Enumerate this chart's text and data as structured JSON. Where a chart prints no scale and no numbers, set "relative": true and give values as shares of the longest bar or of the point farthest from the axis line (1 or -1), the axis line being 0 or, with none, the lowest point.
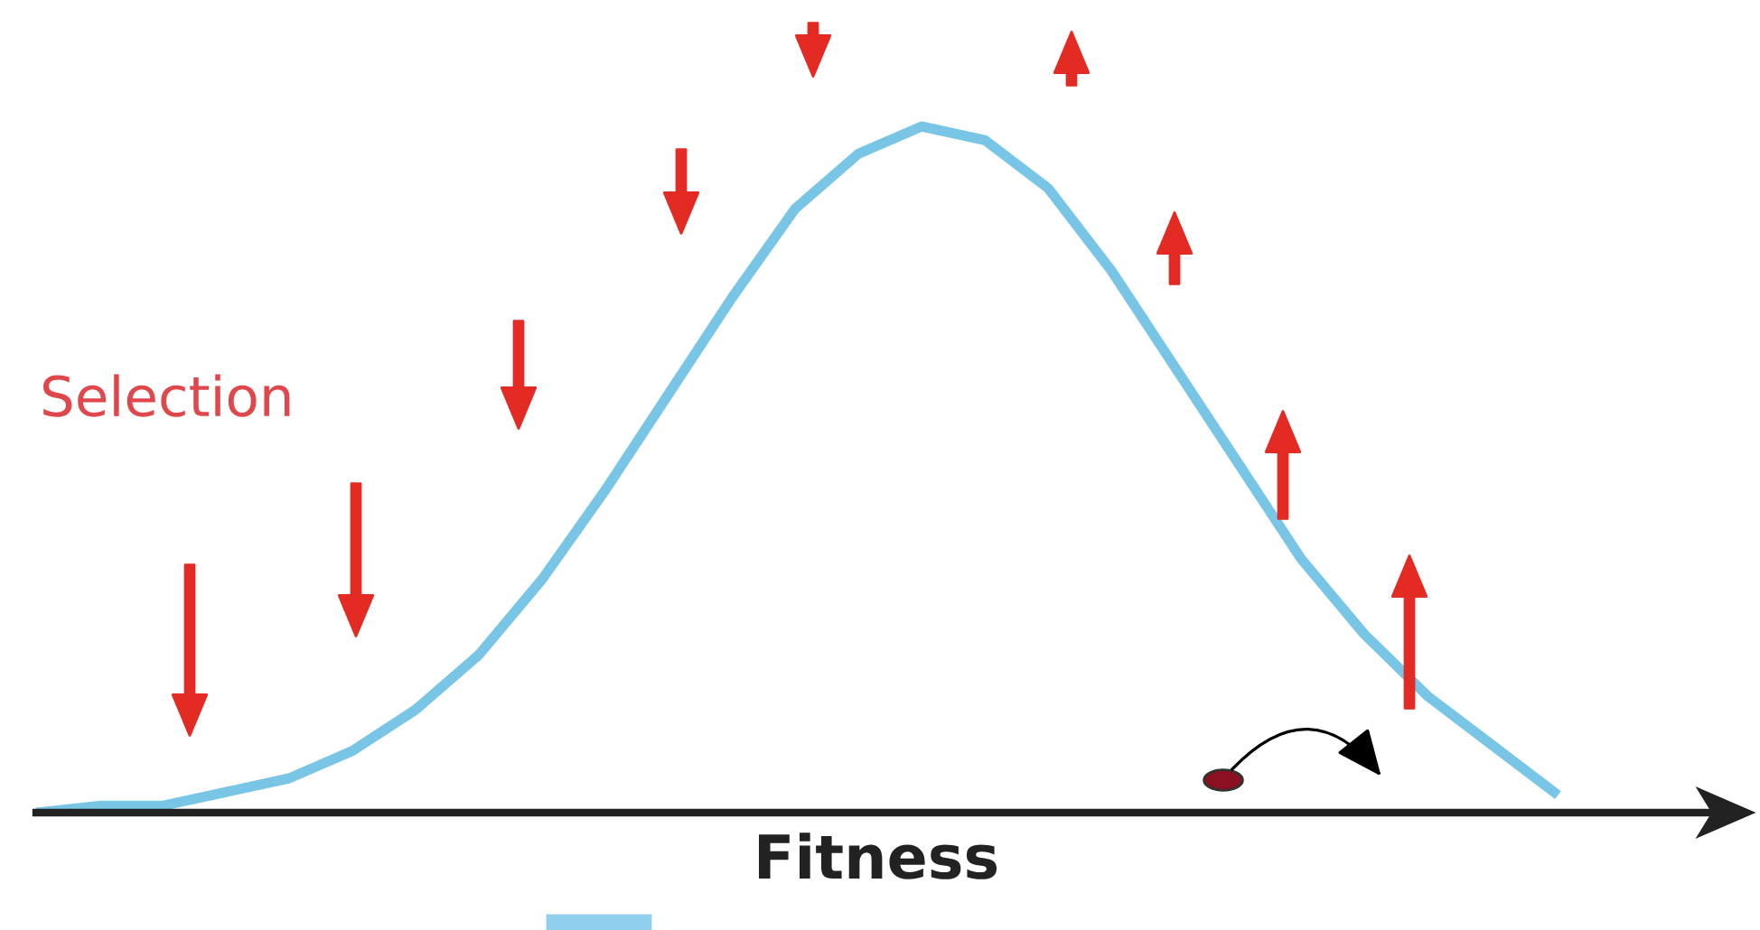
{
  "chart_data": {
    "type": "line",
    "relative": true,
    "xlabel": "Fitness",
    "annotations": [
      "Selection"
    ],
    "tick_labels": false,
    "grid": false,
    "marker": "none",
    "line_style": "solid",
    "categories": [
      null,
      null,
      null,
      null,
      null,
      null,
      null,
      null,
      null,
      null,
      null,
      null,
      null,
      null,
      null,
      null,
      null,
      null,
      null,
      null,
      null,
      null,
      null,
      null,
      null
    ],
    "series": [
      {
        "color": "#78c5e6",
        "values": [
          0.0,
          0.01,
          0.01,
          0.03,
          0.05,
          0.09,
          0.15,
          0.23,
          0.34,
          0.47,
          0.61,
          0.75,
          0.88,
          0.96,
          1.0,
          0.98,
          0.91,
          0.79,
          0.65,
          0.51,
          0.37,
          0.26,
          0.17,
          0.1,
          0.03
        ]
      }
    ]
  }
}
